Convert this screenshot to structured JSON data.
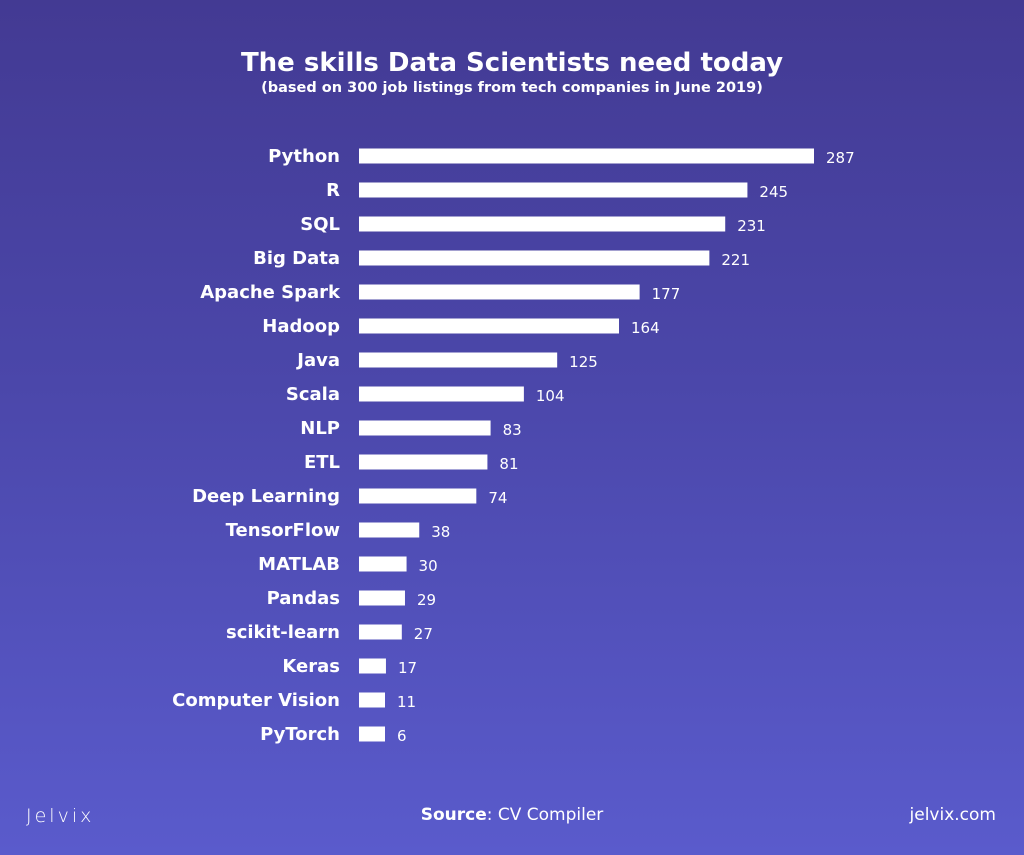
{
  "chart_data": {
    "type": "bar",
    "orientation": "horizontal",
    "title": "The skills Data Scientists need today",
    "subtitle": "(based on 300 job listings from tech companies in June 2019)",
    "categories": [
      "Python",
      "R",
      "SQL",
      "Big Data",
      "Apache Spark",
      "Hadoop",
      "Java",
      "Scala",
      "NLP",
      "ETL",
      "Deep Learning",
      "TensorFlow",
      "MATLAB",
      "Pandas",
      "scikit-learn",
      "Keras",
      "Computer Vision",
      "PyTorch"
    ],
    "values": [
      287,
      245,
      231,
      221,
      177,
      164,
      125,
      104,
      83,
      81,
      74,
      38,
      30,
      29,
      27,
      17,
      11,
      6
    ],
    "xlabel": "",
    "ylabel": "",
    "xlim": [
      0,
      300
    ],
    "grid": false,
    "bar_color": "#ffffff"
  },
  "footer": {
    "logo": "Jelvix",
    "source_label": "Source",
    "source_value": ": CV Compiler",
    "site": "jelvix.com"
  }
}
